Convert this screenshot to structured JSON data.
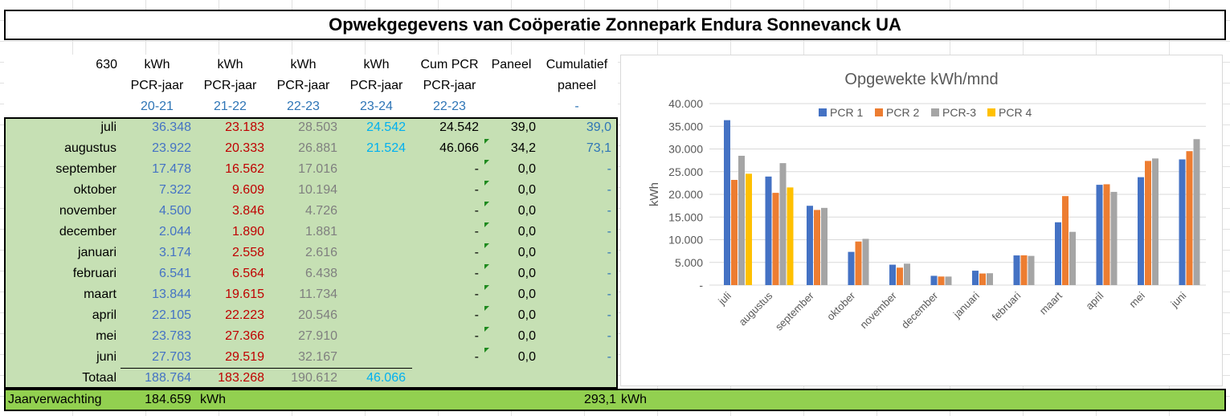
{
  "title": "Opwekgegevens van Coöperatie Zonnepark Endura Sonnevanck UA",
  "table": {
    "corner_value": "630",
    "headers": [
      [
        "kWh",
        "PCR-jaar",
        "20-21"
      ],
      [
        "kWh",
        "PCR-jaar",
        "21-22"
      ],
      [
        "kWh",
        "PCR-jaar",
        "22-23"
      ],
      [
        "kWh",
        "PCR-jaar",
        "23-24"
      ],
      [
        "Cum PCR",
        "PCR-jaar",
        "22-23"
      ],
      [
        "Paneel",
        "",
        ""
      ],
      [
        "Cumulatief",
        "paneel",
        "-"
      ]
    ],
    "rows": [
      {
        "month": "juli",
        "c1": "36.348",
        "c2": "23.183",
        "c3": "28.503",
        "c4": "24.542",
        "cum": "24.542",
        "paneel": "39,0",
        "cumpaneel": "39,0"
      },
      {
        "month": "augustus",
        "c1": "23.922",
        "c2": "20.333",
        "c3": "26.881",
        "c4": "21.524",
        "cum": "46.066",
        "paneel": "34,2",
        "cumpaneel": "73,1"
      },
      {
        "month": "september",
        "c1": "17.478",
        "c2": "16.562",
        "c3": "17.016",
        "c4": "",
        "cum": "-",
        "paneel": "0,0",
        "cumpaneel": "-"
      },
      {
        "month": "oktober",
        "c1": "7.322",
        "c2": "9.609",
        "c3": "10.194",
        "c4": "",
        "cum": "-",
        "paneel": "0,0",
        "cumpaneel": "-"
      },
      {
        "month": "november",
        "c1": "4.500",
        "c2": "3.846",
        "c3": "4.726",
        "c4": "",
        "cum": "-",
        "paneel": "0,0",
        "cumpaneel": "-"
      },
      {
        "month": "december",
        "c1": "2.044",
        "c2": "1.890",
        "c3": "1.881",
        "c4": "",
        "cum": "-",
        "paneel": "0,0",
        "cumpaneel": "-"
      },
      {
        "month": "januari",
        "c1": "3.174",
        "c2": "2.558",
        "c3": "2.616",
        "c4": "",
        "cum": "-",
        "paneel": "0,0",
        "cumpaneel": "-"
      },
      {
        "month": "februari",
        "c1": "6.541",
        "c2": "6.564",
        "c3": "6.438",
        "c4": "",
        "cum": "-",
        "paneel": "0,0",
        "cumpaneel": "-"
      },
      {
        "month": "maart",
        "c1": "13.844",
        "c2": "19.615",
        "c3": "11.734",
        "c4": "",
        "cum": "-",
        "paneel": "0,0",
        "cumpaneel": "-"
      },
      {
        "month": "april",
        "c1": "22.105",
        "c2": "22.223",
        "c3": "20.546",
        "c4": "",
        "cum": "-",
        "paneel": "0,0",
        "cumpaneel": "-"
      },
      {
        "month": "mei",
        "c1": "23.783",
        "c2": "27.366",
        "c3": "27.910",
        "c4": "",
        "cum": "-",
        "paneel": "0,0",
        "cumpaneel": "-"
      },
      {
        "month": "juni",
        "c1": "27.703",
        "c2": "29.519",
        "c3": "32.167",
        "c4": "",
        "cum": "-",
        "paneel": "0,0",
        "cumpaneel": "-"
      }
    ],
    "total": {
      "label": "Totaal",
      "c1": "188.764",
      "c2": "183.268",
      "c3": "190.612",
      "c4": "46.066"
    }
  },
  "footer": {
    "label": "Jaarverwachting",
    "value": "184.659",
    "unit": "kWh",
    "value2": "293,1",
    "unit2": "kWh"
  },
  "colors": {
    "pcr1": "#4472c4",
    "pcr2": "#ed7d31",
    "pcr3": "#a5a5a5",
    "pcr4": "#ffc000",
    "green_fill": "#c6e0b4",
    "footer_fill": "#92d050"
  },
  "chart_data": {
    "type": "bar",
    "title": "Opgewekte kWh/mnd",
    "ylabel": "kWh",
    "xlabel": "",
    "ylim": [
      0,
      40000
    ],
    "yticks": [
      0,
      5000,
      10000,
      15000,
      20000,
      25000,
      30000,
      35000,
      40000
    ],
    "ytick_labels": [
      "-",
      "5.000",
      "10.000",
      "15.000",
      "20.000",
      "25.000",
      "30.000",
      "35.000",
      "40.000"
    ],
    "legend_position": "top",
    "grid": true,
    "categories": [
      "juli",
      "augustus",
      "september",
      "oktober",
      "november",
      "december",
      "januari",
      "februari",
      "maart",
      "april",
      "mei",
      "juni"
    ],
    "series": [
      {
        "name": "PCR 1",
        "values": [
          36348,
          23922,
          17478,
          7322,
          4500,
          2044,
          3174,
          6541,
          13844,
          22105,
          23783,
          27703
        ]
      },
      {
        "name": "PCR 2",
        "values": [
          23183,
          20333,
          16562,
          9609,
          3846,
          1890,
          2558,
          6564,
          19615,
          22223,
          27366,
          29519
        ]
      },
      {
        "name": "PCR-3",
        "values": [
          28503,
          26881,
          17016,
          10194,
          4726,
          1881,
          2616,
          6438,
          11734,
          20546,
          27910,
          32167
        ]
      },
      {
        "name": "PCR 4",
        "values": [
          24542,
          21524,
          null,
          null,
          null,
          null,
          null,
          null,
          null,
          null,
          null,
          null
        ]
      }
    ]
  }
}
